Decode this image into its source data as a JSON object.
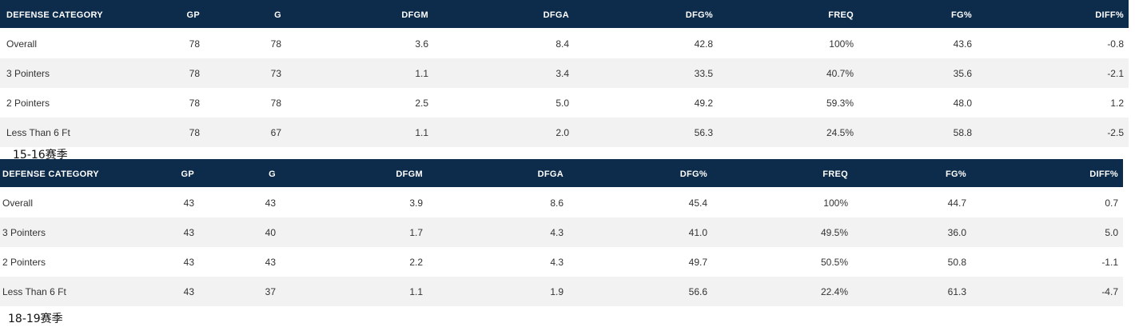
{
  "tables": [
    {
      "caption": "15-16赛季",
      "columns": [
        "DEFENSE CATEGORY",
        "GP",
        "G",
        "DFGM",
        "DFGA",
        "DFG%",
        "FREQ",
        "FG%",
        "DIFF%"
      ],
      "rows": [
        [
          "Overall",
          "78",
          "78",
          "3.6",
          "8.4",
          "42.8",
          "100%",
          "43.6",
          "-0.8"
        ],
        [
          "3 Pointers",
          "78",
          "73",
          "1.1",
          "3.4",
          "33.5",
          "40.7%",
          "35.6",
          "-2.1"
        ],
        [
          "2 Pointers",
          "78",
          "78",
          "2.5",
          "5.0",
          "49.2",
          "59.3%",
          "48.0",
          "1.2"
        ],
        [
          "Less Than 6 Ft",
          "78",
          "67",
          "1.1",
          "2.0",
          "56.3",
          "24.5%",
          "58.8",
          "-2.5"
        ]
      ]
    },
    {
      "caption": "18-19赛季",
      "columns": [
        "DEFENSE CATEGORY",
        "GP",
        "G",
        "DFGM",
        "DFGA",
        "DFG%",
        "FREQ",
        "FG%",
        "DIFF%"
      ],
      "rows": [
        [
          "Overall",
          "43",
          "43",
          "3.9",
          "8.6",
          "45.4",
          "100%",
          "44.7",
          "0.7"
        ],
        [
          "3 Pointers",
          "43",
          "40",
          "1.7",
          "4.3",
          "41.0",
          "49.5%",
          "36.0",
          "5.0"
        ],
        [
          "2 Pointers",
          "43",
          "43",
          "2.2",
          "4.3",
          "49.7",
          "50.5%",
          "50.8",
          "-1.1"
        ],
        [
          "Less Than 6 Ft",
          "43",
          "37",
          "1.1",
          "1.9",
          "56.6",
          "22.4%",
          "61.3",
          "-4.7"
        ]
      ]
    }
  ]
}
